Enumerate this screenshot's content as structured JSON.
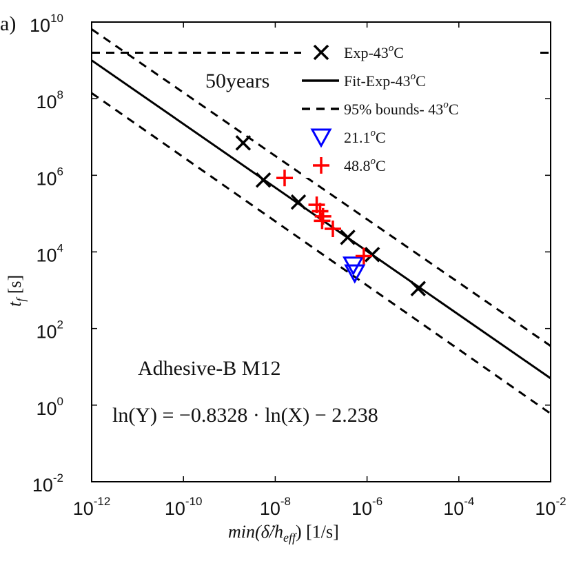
{
  "panel_label": "a)",
  "chart_data": {
    "type": "scatter",
    "title": "",
    "xlabel": {
      "pre": "min(",
      "main": "δ̇/h",
      "sub": "eff",
      "post": ") [1/s]"
    },
    "ylabel": {
      "main": "t",
      "sub": "f",
      "post": " [s]"
    },
    "xscale": "log",
    "yscale": "log",
    "xlim": [
      1e-12,
      0.01
    ],
    "ylim": [
      0.01,
      10000000000.0
    ],
    "x_ticks": [
      {
        "value": 1e-12,
        "base": "10",
        "exp": "-12"
      },
      {
        "value": 1e-10,
        "base": "10",
        "exp": "-10"
      },
      {
        "value": 1e-08,
        "base": "10",
        "exp": "-8"
      },
      {
        "value": 1e-06,
        "base": "10",
        "exp": "-6"
      },
      {
        "value": 0.0001,
        "base": "10",
        "exp": "-4"
      },
      {
        "value": 0.01,
        "base": "10",
        "exp": "-2"
      }
    ],
    "y_ticks": [
      {
        "value": 0.01,
        "base": "10",
        "exp": "-2"
      },
      {
        "value": 1.0,
        "base": "10",
        "exp": "0"
      },
      {
        "value": 100.0,
        "base": "10",
        "exp": "2"
      },
      {
        "value": 10000.0,
        "base": "10",
        "exp": "4"
      },
      {
        "value": 1000000.0,
        "base": "10",
        "exp": "6"
      },
      {
        "value": 100000000.0,
        "base": "10",
        "exp": "8"
      },
      {
        "value": 10000000000.0,
        "base": "10",
        "exp": "10"
      }
    ],
    "grid": false,
    "legend_position": "top-right",
    "series": [
      {
        "name": "Exp-43°C",
        "legend": {
          "text": "Exp-43",
          "sup": "o",
          "unit": "C"
        },
        "marker": "x",
        "color": "#000000",
        "points": [
          {
            "x": 2e-09,
            "y": 7000000.0
          },
          {
            "x": 5.5e-09,
            "y": 750000.0
          },
          {
            "x": 3.2e-08,
            "y": 200000.0
          },
          {
            "x": 3.8e-07,
            "y": 24000.0
          },
          {
            "x": 1.3e-06,
            "y": 8500.0
          },
          {
            "x": 1.3e-05,
            "y": 1100.0
          }
        ]
      },
      {
        "name": "21.1°C",
        "legend": {
          "text": "21.1",
          "sup": "o",
          "unit": "C"
        },
        "marker": "triangle-down",
        "color": "#0000ff",
        "points": [
          {
            "x": 5e-07,
            "y": 4500.0
          },
          {
            "x": 5.4e-07,
            "y": 2800.0
          }
        ]
      },
      {
        "name": "48.8°C",
        "legend": {
          "text": "48.8",
          "sup": "o",
          "unit": "C"
        },
        "marker": "plus",
        "color": "#ff0000",
        "points": [
          {
            "x": 1.6e-08,
            "y": 850000.0
          },
          {
            "x": 8e-08,
            "y": 170000.0
          },
          {
            "x": 9.5e-08,
            "y": 115000.0
          },
          {
            "x": 1.1e-07,
            "y": 85000.0
          },
          {
            "x": 1.05e-07,
            "y": 65000.0
          },
          {
            "x": 1.8e-07,
            "y": 40000.0
          },
          {
            "x": 8.5e-07,
            "y": 7800.0
          }
        ]
      }
    ],
    "lines": [
      {
        "name": "Fit-Exp-43°C",
        "legend": {
          "text": "Fit-Exp-43",
          "sup": "o",
          "unit": "C"
        },
        "style": "solid",
        "color": "#000000",
        "points": [
          {
            "x": 1e-12,
            "y": 1000000000.0
          },
          {
            "x": 0.01,
            "y": 5.0
          }
        ]
      },
      {
        "name": "95% bounds- 43°C (upper)",
        "legend": {
          "text": "95% bounds- 43",
          "sup": "o",
          "unit": "C"
        },
        "style": "dashed",
        "color": "#000000",
        "points": [
          {
            "x": 1e-12,
            "y": 6500000000.0
          },
          {
            "x": 0.01,
            "y": 35.0
          }
        ]
      },
      {
        "name": "95% bounds- 43°C (lower)",
        "style": "dashed",
        "color": "#000000",
        "points": [
          {
            "x": 1e-12,
            "y": 140000000.0
          },
          {
            "x": 0.01,
            "y": 0.6
          }
        ]
      },
      {
        "name": "50years",
        "style": "dashed",
        "color": "#000000",
        "points": [
          {
            "x": 1e-12,
            "y": 1580000000.0
          },
          {
            "x": 0.01,
            "y": 1580000000.0
          }
        ]
      }
    ],
    "annotations": {
      "years_label": "50years",
      "material": "Adhesive-B M12",
      "equation": "ln(Y) = −0.8328 · ln(X) − 2.238"
    }
  }
}
